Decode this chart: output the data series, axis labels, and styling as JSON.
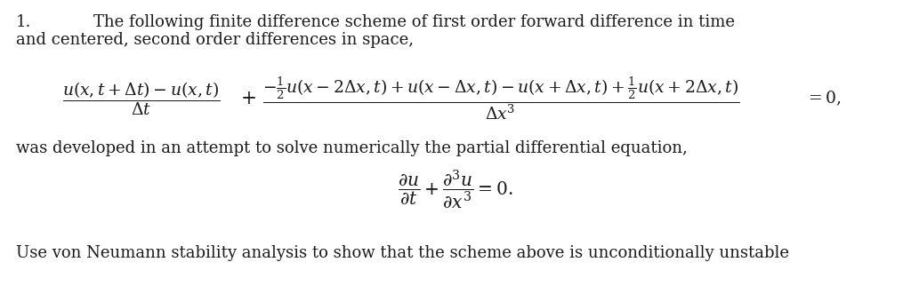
{
  "background_color": "#ffffff",
  "text_color": "#1a1a1a",
  "number_label": "1.",
  "line1": "The following finite difference scheme of first order forward difference in time",
  "line2": "and centered, second order differences in space,",
  "prose": "was developed in an attempt to solve numerically the partial differential equation,",
  "last_line": "Use von Neumann stability analysis to show that the scheme above is unconditionally unstable",
  "fontsize_text": 13.0,
  "fontsize_math": 13.5
}
